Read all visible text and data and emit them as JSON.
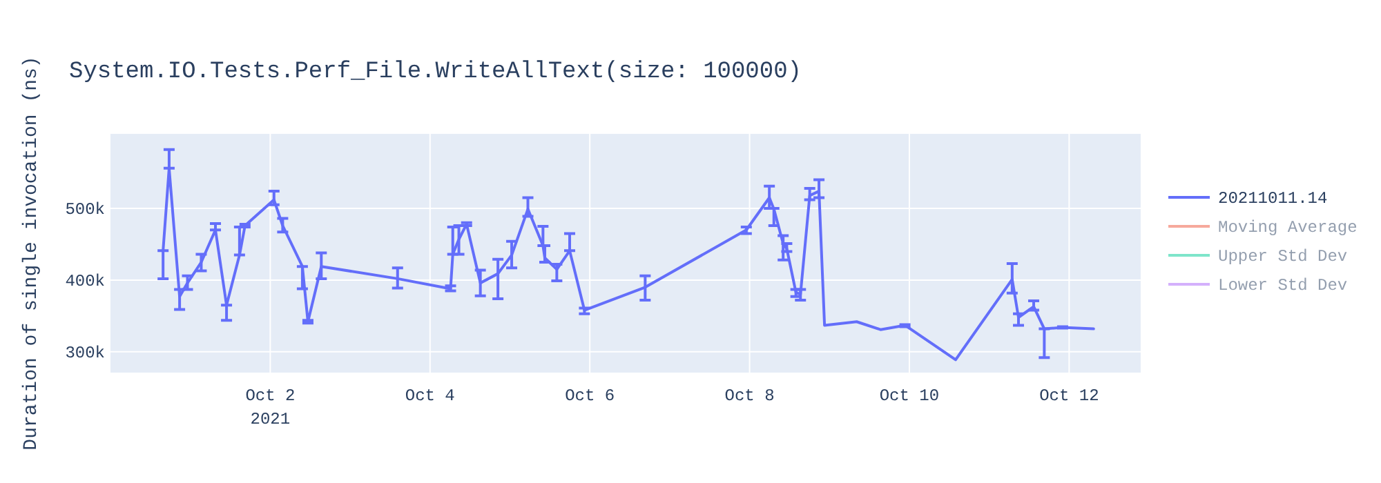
{
  "chart_data": {
    "type": "line",
    "title": "System.IO.Tests.Perf_File.WriteAllText(size: 100000)",
    "ylabel": "Duration of single invocation (ns)",
    "xlim": [
      "2021-09-30T00:00",
      "2021-10-12T21:30"
    ],
    "xticks": [
      {
        "value": "2021-10-02",
        "label": "Oct 2\n2021"
      },
      {
        "value": "2021-10-04",
        "label": "Oct 4"
      },
      {
        "value": "2021-10-06",
        "label": "Oct 6"
      },
      {
        "value": "2021-10-08",
        "label": "Oct 8"
      },
      {
        "value": "2021-10-10",
        "label": "Oct 10"
      },
      {
        "value": "2021-10-12",
        "label": "Oct 12"
      }
    ],
    "ylim": [
      271000,
      604000
    ],
    "yticks": [
      {
        "value": 300000,
        "label": "300k"
      },
      {
        "value": 400000,
        "label": "400k"
      },
      {
        "value": 500000,
        "label": "500k"
      }
    ],
    "grid": true,
    "legend": "top right",
    "marker": "none",
    "line_style": "solid",
    "series": [
      {
        "name": "20211011.14",
        "color": "#636efa",
        "x": [
          "2021-09-30T15:48",
          "2021-09-30T17:37",
          "2021-09-30T20:46",
          "2021-09-30T23:08",
          "2021-10-01T03:16",
          "2021-10-01T07:32",
          "2021-10-01T10:52",
          "2021-10-01T14:46",
          "2021-10-01T16:25",
          "2021-10-02T01:07",
          "2021-10-02T03:44",
          "2021-10-02T09:39",
          "2021-10-02T11:19",
          "2021-10-02T15:20",
          "2021-10-03T14:15",
          "2021-10-04T06:10",
          "2021-10-04T06:50",
          "2021-10-04T08:40",
          "2021-10-04T10:59",
          "2021-10-04T15:07",
          "2021-10-04T20:24",
          "2021-10-05T00:32",
          "2021-10-05T05:24",
          "2021-10-05T09:56",
          "2021-10-05T10:29",
          "2021-10-05T14:05",
          "2021-10-05T17:57",
          "2021-10-05T22:23",
          "2021-10-06T16:38",
          "2021-10-07T23:01",
          "2021-10-08T05:56",
          "2021-10-08T07:18",
          "2021-10-08T10:05",
          "2021-10-08T11:10",
          "2021-10-08T13:55",
          "2021-10-08T15:17",
          "2021-10-08T18:04",
          "2021-10-08T20:51",
          "2021-10-08T22:31",
          "2021-10-09T08:10",
          "2021-10-09T15:20",
          "2021-10-09T22:41",
          "2021-10-10T13:54",
          "2021-10-11T06:53",
          "2021-10-11T08:47",
          "2021-10-11T13:21",
          "2021-10-11T16:32",
          "2021-10-11T22:03",
          "2021-10-12T02:30",
          "2021-10-12T07:21"
        ],
        "values": [
          441000,
          556000,
          377000,
          396000,
          425000,
          470000,
          365000,
          435000,
          476000,
          512000,
          476000,
          419000,
          342000,
          419000,
          402000,
          388000,
          436000,
          457000,
          478000,
          396000,
          409000,
          435000,
          499000,
          448000,
          431000,
          415000,
          441000,
          358000,
          390000,
          470000,
          515000,
          499000,
          451000,
          444000,
          383000,
          380000,
          518000,
          524000,
          337000,
          342000,
          331000,
          337000,
          289000,
          401000,
          348000,
          363000,
          332000,
          334000,
          333000,
          332000
        ],
        "errors": [
          [
            402000,
            441000
          ],
          [
            556000,
            582000
          ],
          [
            359000,
            387000
          ],
          [
            387000,
            406000
          ],
          [
            413000,
            436000
          ],
          [
            470000,
            479000
          ],
          [
            344000,
            365000
          ],
          [
            435000,
            474000
          ],
          [
            474000,
            478000
          ],
          [
            505000,
            524000
          ],
          [
            467000,
            486000
          ],
          [
            388000,
            419000
          ],
          [
            340000,
            344000
          ],
          [
            402000,
            438000
          ],
          [
            389000,
            417000
          ],
          [
            385000,
            392000
          ],
          [
            436000,
            474000
          ],
          [
            436000,
            476000
          ],
          [
            476000,
            480000
          ],
          [
            378000,
            414000
          ],
          [
            374000,
            429000
          ],
          [
            417000,
            454000
          ],
          [
            489000,
            515000
          ],
          [
            448000,
            475000
          ],
          [
            425000,
            448000
          ],
          [
            399000,
            422000
          ],
          [
            441000,
            465000
          ],
          [
            353000,
            361000
          ],
          [
            372000,
            406000
          ],
          [
            465000,
            474000
          ],
          [
            500000,
            531000
          ],
          [
            476000,
            500000
          ],
          [
            428000,
            462000
          ],
          [
            440000,
            451000
          ],
          [
            377000,
            387000
          ],
          [
            372000,
            387000
          ],
          [
            512000,
            528000
          ],
          [
            515000,
            540000
          ],
          null,
          null,
          null,
          [
            335000,
            338000
          ],
          null,
          [
            382000,
            423000
          ],
          [
            337000,
            353000
          ],
          [
            358000,
            371000
          ],
          [
            292000,
            332000
          ],
          [
            333000,
            335000
          ],
          null,
          null
        ]
      },
      {
        "name": "Moving Average",
        "color": "#ef553b"
      },
      {
        "name": "Upper Std Dev",
        "color": "#00cc96"
      },
      {
        "name": "Lower Std Dev",
        "color": "#ab63fa"
      }
    ]
  }
}
